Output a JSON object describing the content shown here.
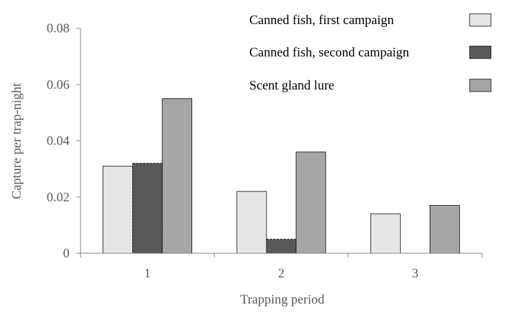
{
  "chart_data": {
    "type": "bar",
    "title": "",
    "xlabel": "Trapping period",
    "ylabel": "Capture per trap-night",
    "categories": [
      "1",
      "2",
      "3"
    ],
    "ylim": [
      0,
      0.08
    ],
    "yticks": [
      "0",
      "0.02",
      "0.04",
      "0.06",
      "0.08"
    ],
    "grid": false,
    "legend_position": "top-right",
    "series": [
      {
        "name": "Canned fish, first campaign",
        "values": [
          0.031,
          0.022,
          0.014
        ],
        "color": "#e6e6e6"
      },
      {
        "name": "Canned fish, second campaign",
        "values": [
          0.032,
          0.005,
          null
        ],
        "color": "#595959"
      },
      {
        "name": "Scent gland lure",
        "values": [
          0.055,
          0.036,
          0.017
        ],
        "color": "#a6a6a6"
      }
    ]
  }
}
